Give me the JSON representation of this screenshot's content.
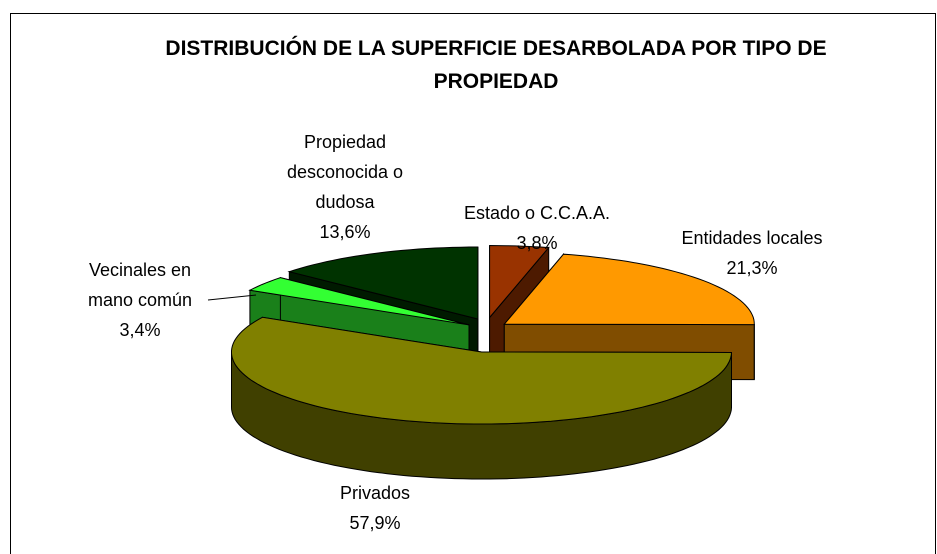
{
  "chart_data": {
    "type": "pie3d",
    "title": "DISTRIBUCIÓN DE LA SUPERFICIE DESARBOLADA POR TIPO DE PROPIEDAD",
    "categories": [
      "Estado o C.C.A.A.",
      "Entidades locales",
      "Privados",
      "Vecinales en mano común",
      "Propiedad desconocida o dudosa"
    ],
    "values": [
      3.8,
      21.3,
      57.9,
      3.4,
      13.6
    ],
    "value_labels": [
      "3,8%",
      "21,3%",
      "57,9%",
      "3,4%",
      "13,6%"
    ],
    "colors": [
      "#993300",
      "#ff9900",
      "#808000",
      "#33ff33",
      "#003300"
    ]
  }
}
